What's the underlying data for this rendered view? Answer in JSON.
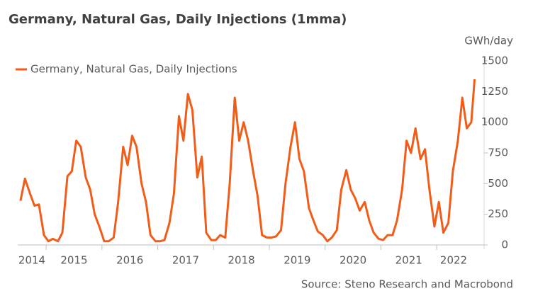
{
  "chart_data": {
    "type": "line",
    "title": "Germany, Natural Gas, Daily Injections (1mma)",
    "y_axis_label": "GWh/day",
    "source": "Source: Steno Research and Macrobond",
    "legend": "top-left",
    "xlim": [
      2014.49,
      2022.85
    ],
    "xticks": [
      2014,
      2015,
      2016,
      2017,
      2018,
      2019,
      2020,
      2021,
      2022
    ],
    "ylim": [
      0,
      1500
    ],
    "yticks": [
      0,
      250,
      500,
      750,
      1000,
      1250,
      1500
    ],
    "series": [
      {
        "name": "Germany, Natural Gas, Daily Injections",
        "color": "#f25c19",
        "x": [
          2014.54,
          2014.62,
          2014.71,
          2014.79,
          2014.87,
          2014.96,
          2015.04,
          2015.12,
          2015.21,
          2015.29,
          2015.38,
          2015.46,
          2015.54,
          2015.62,
          2015.71,
          2015.79,
          2015.87,
          2015.96,
          2016.04,
          2016.12,
          2016.21,
          2016.29,
          2016.38,
          2016.46,
          2016.54,
          2016.62,
          2016.71,
          2016.79,
          2016.87,
          2016.96,
          2017.04,
          2017.12,
          2017.21,
          2017.29,
          2017.38,
          2017.46,
          2017.54,
          2017.62,
          2017.71,
          2017.79,
          2017.87,
          2017.96,
          2018.04,
          2018.12,
          2018.21,
          2018.29,
          2018.38,
          2018.46,
          2018.54,
          2018.62,
          2018.71,
          2018.79,
          2018.87,
          2018.96,
          2019.04,
          2019.12,
          2019.21,
          2019.29,
          2019.38,
          2019.46,
          2019.54,
          2019.62,
          2019.71,
          2019.79,
          2019.87,
          2019.96,
          2020.04,
          2020.12,
          2020.21,
          2020.29,
          2020.38,
          2020.46,
          2020.54,
          2020.62,
          2020.71,
          2020.79,
          2020.87,
          2020.96,
          2021.04,
          2021.12,
          2021.21,
          2021.29,
          2021.38,
          2021.46,
          2021.54,
          2021.62,
          2021.71,
          2021.79,
          2021.87,
          2021.96,
          2022.04,
          2022.12,
          2022.21,
          2022.29,
          2022.38,
          2022.46,
          2022.54,
          2022.62,
          2022.68
        ],
        "values": [
          360,
          540,
          420,
          320,
          330,
          80,
          30,
          50,
          30,
          100,
          560,
          600,
          850,
          800,
          550,
          450,
          250,
          140,
          30,
          30,
          60,
          350,
          800,
          650,
          890,
          800,
          500,
          350,
          80,
          30,
          30,
          40,
          180,
          420,
          1050,
          850,
          1230,
          1100,
          550,
          720,
          100,
          40,
          40,
          80,
          60,
          500,
          1200,
          850,
          1000,
          850,
          600,
          400,
          80,
          60,
          60,
          70,
          120,
          500,
          800,
          1000,
          700,
          600,
          300,
          200,
          110,
          80,
          30,
          60,
          120,
          450,
          610,
          450,
          380,
          280,
          350,
          200,
          100,
          50,
          40,
          80,
          80,
          200,
          450,
          850,
          750,
          950,
          700,
          780,
          450,
          150,
          350,
          100,
          180,
          600,
          850,
          1200,
          950,
          1000,
          1350
        ]
      }
    ]
  }
}
